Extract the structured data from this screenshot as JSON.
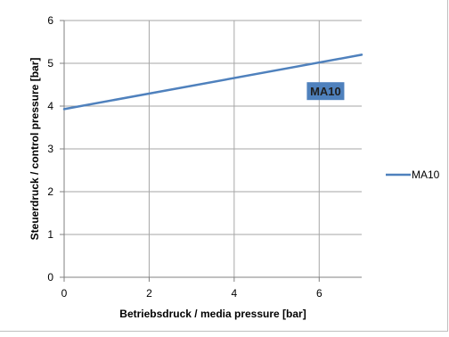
{
  "chart_data": {
    "type": "line",
    "title": "",
    "xlabel": "Betriebsdruck / media pressure [bar]",
    "ylabel": "Steuerdruck  / control pressure [bar]",
    "xlim": [
      0,
      7
    ],
    "ylim": [
      0,
      6
    ],
    "x_ticks": [
      0,
      2,
      4,
      6
    ],
    "y_ticks": [
      0,
      1,
      2,
      3,
      4,
      5,
      6
    ],
    "grid": true,
    "legend_position": "right",
    "series": [
      {
        "name": "MA10",
        "color": "#4f81bd",
        "x": [
          0,
          7
        ],
        "y": [
          3.93,
          5.2
        ]
      }
    ],
    "annotations": [
      {
        "text": "MA10",
        "x": 6.15,
        "y": 4.35,
        "background": "#4f81bd",
        "color": "#1f1f1f"
      }
    ]
  }
}
